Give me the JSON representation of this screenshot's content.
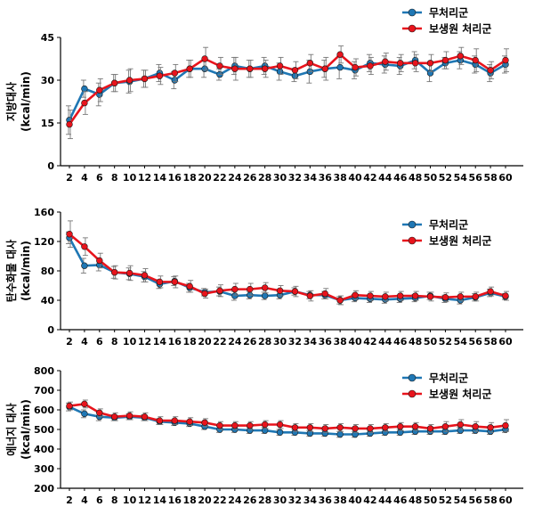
{
  "series_colors": {
    "control": "#1f77b4",
    "treatment": "#e8141c"
  },
  "chart_data": [
    {
      "type": "line",
      "ylabel": "지방대사",
      "yunit": "(kcal/min)",
      "ylim": [
        0,
        45
      ],
      "yticks": [
        0,
        15,
        30,
        45
      ],
      "legend_position": "top-right",
      "x": [
        2,
        4,
        6,
        8,
        10,
        12,
        14,
        16,
        18,
        20,
        22,
        24,
        26,
        28,
        30,
        32,
        34,
        36,
        38,
        40,
        42,
        44,
        46,
        48,
        50,
        52,
        54,
        56,
        58,
        60
      ],
      "series": [
        {
          "name": "무처리군",
          "color": "#1f77b4",
          "values": [
            16,
            27,
            25,
            29,
            29.5,
            30.5,
            32.5,
            30,
            34,
            34,
            32,
            35,
            34,
            35,
            33,
            31.5,
            33,
            34,
            34.5,
            33.5,
            36,
            35.5,
            35,
            37,
            32.5,
            36,
            37,
            35.5,
            32.5,
            35.5
          ],
          "errors": [
            5,
            3,
            4,
            3,
            4,
            3,
            3,
            3,
            3,
            3,
            2,
            3,
            3,
            3,
            3,
            2,
            4,
            3,
            4,
            3,
            3,
            3,
            3,
            3,
            3,
            2,
            3,
            3,
            3,
            3
          ]
        },
        {
          "name": "보생원 처리군",
          "color": "#e8141c",
          "values": [
            14.5,
            22,
            26.5,
            29,
            30,
            30.5,
            31.5,
            32.5,
            34,
            37.5,
            35,
            34,
            34,
            34,
            35,
            33.5,
            36,
            34,
            39,
            34.5,
            35,
            36.5,
            36,
            36,
            36,
            37,
            38.5,
            37,
            33.5,
            37
          ],
          "errors": [
            5,
            4,
            4,
            3,
            4,
            3,
            3,
            3,
            3,
            4,
            3,
            4,
            3,
            3,
            3,
            3,
            3,
            4,
            3,
            3,
            3,
            3,
            3,
            3,
            3,
            3,
            3,
            4,
            3,
            4
          ]
        }
      ]
    },
    {
      "type": "line",
      "ylabel": "탄수화물 대사",
      "yunit": "(kcal/min)",
      "ylim": [
        0,
        160
      ],
      "yticks": [
        0,
        40,
        80,
        120,
        160
      ],
      "legend_position": "top-right",
      "x": [
        2,
        4,
        6,
        8,
        10,
        12,
        14,
        16,
        18,
        20,
        22,
        24,
        26,
        28,
        30,
        32,
        34,
        36,
        38,
        40,
        42,
        44,
        46,
        48,
        50,
        52,
        54,
        56,
        58,
        60
      ],
      "series": [
        {
          "name": "무처리군",
          "color": "#1f77b4",
          "values": [
            125,
            87,
            88,
            78,
            76,
            72,
            62,
            66,
            57,
            51,
            52,
            46,
            47,
            46,
            47,
            52,
            47,
            47,
            40,
            43,
            42,
            41,
            42,
            43,
            46,
            42,
            40,
            44,
            50,
            45
          ],
          "errors": [
            8,
            10,
            8,
            8,
            8,
            7,
            6,
            6,
            6,
            5,
            6,
            6,
            5,
            5,
            5,
            5,
            5,
            5,
            5,
            5,
            5,
            5,
            5,
            5,
            5,
            5,
            5,
            5,
            5,
            4
          ]
        },
        {
          "name": "보생원 처리군",
          "color": "#e8141c",
          "values": [
            130,
            113,
            94,
            78,
            77,
            74,
            65,
            65,
            59,
            49,
            53,
            55,
            55,
            57,
            53,
            52,
            46,
            49,
            40,
            47,
            46,
            45,
            46,
            46,
            45,
            44,
            45,
            45,
            52,
            46
          ],
          "errors": [
            18,
            12,
            10,
            9,
            10,
            9,
            8,
            8,
            8,
            6,
            8,
            8,
            8,
            7,
            7,
            7,
            7,
            7,
            6,
            6,
            6,
            6,
            6,
            6,
            6,
            6,
            6,
            6,
            6,
            6
          ]
        }
      ]
    },
    {
      "type": "line",
      "ylabel": "에너지 대사",
      "yunit": "(kcal/min)",
      "ylim": [
        200,
        800
      ],
      "yticks": [
        200,
        300,
        400,
        500,
        600,
        700,
        800
      ],
      "legend_position": "top-right",
      "x": [
        2,
        4,
        6,
        8,
        10,
        12,
        14,
        16,
        18,
        20,
        22,
        24,
        26,
        28,
        30,
        32,
        34,
        36,
        38,
        40,
        42,
        44,
        46,
        48,
        50,
        52,
        54,
        56,
        58,
        60
      ],
      "series": [
        {
          "name": "무처리군",
          "color": "#1f77b4",
          "values": [
            615,
            580,
            565,
            560,
            565,
            560,
            540,
            535,
            530,
            515,
            500,
            500,
            495,
            495,
            485,
            485,
            480,
            480,
            475,
            475,
            480,
            485,
            485,
            490,
            490,
            490,
            495,
            495,
            490,
            500
          ],
          "errors": [
            20,
            20,
            20,
            15,
            15,
            15,
            15,
            15,
            15,
            15,
            15,
            15,
            15,
            15,
            15,
            15,
            15,
            15,
            15,
            15,
            15,
            15,
            15,
            15,
            15,
            15,
            15,
            15,
            15,
            15
          ]
        },
        {
          "name": "보생원 처리군",
          "color": "#e8141c",
          "values": [
            620,
            630,
            585,
            565,
            570,
            565,
            545,
            545,
            540,
            535,
            520,
            520,
            520,
            525,
            525,
            510,
            510,
            505,
            510,
            505,
            505,
            510,
            515,
            515,
            505,
            515,
            525,
            515,
            510,
            520
          ],
          "errors": [
            20,
            20,
            20,
            20,
            20,
            20,
            20,
            20,
            20,
            20,
            20,
            20,
            20,
            20,
            20,
            20,
            20,
            20,
            20,
            20,
            20,
            20,
            20,
            20,
            20,
            25,
            25,
            25,
            25,
            30
          ]
        }
      ]
    }
  ]
}
